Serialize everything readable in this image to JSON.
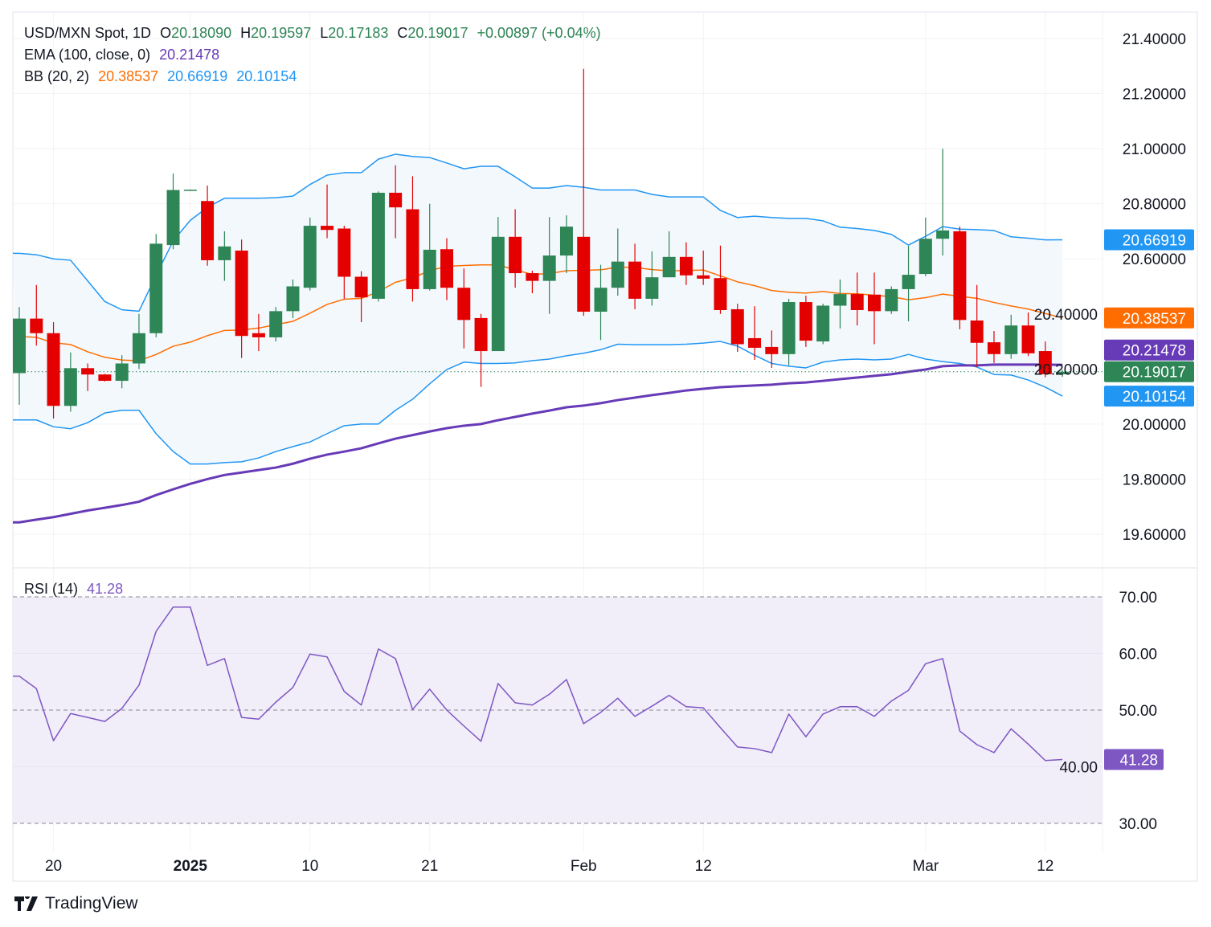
{
  "header": {
    "symbol": "USD/MXN Spot, 1D",
    "open_label": "O",
    "open": "20.18090",
    "high_label": "H",
    "high": "20.19597",
    "low_label": "L",
    "low": "20.17183",
    "close_label": "C",
    "close": "20.19017",
    "change": "+0.00897 (+0.04%)"
  },
  "ema": {
    "label": "EMA (100, close, 0)",
    "value": "20.21478"
  },
  "bb": {
    "label": "BB (20, 2)",
    "basis": "20.38537",
    "upper": "20.66919",
    "lower": "20.10154"
  },
  "rsi": {
    "label": "RSI (14)",
    "value": "41.28"
  },
  "colors": {
    "up": "#2e8555",
    "down": "#e50000",
    "ema": "#673ab7",
    "bb_basis": "#ff6d00",
    "bb_band": "#2196f3",
    "rsi": "#7e57c2",
    "rsi_fill": "#f1edf9",
    "bb_fill": "#f3f8fd"
  },
  "brand": "TradingView",
  "chart_data": [
    {
      "type": "candlestick",
      "title": "USD/MXN Spot, 1D",
      "ylim": [
        19.5,
        21.45
      ],
      "y_ticks": [
        "21.40000",
        "21.20000",
        "21.00000",
        "20.80000",
        "20.60000",
        "20.40000",
        "20.20000",
        "20.00000",
        "19.80000",
        "19.60000"
      ],
      "x_ticks": [
        {
          "label": "20",
          "index": 2,
          "bold": false
        },
        {
          "label": "2025",
          "index": 10,
          "bold": true
        },
        {
          "label": "10",
          "index": 17,
          "bold": false
        },
        {
          "label": "21",
          "index": 24,
          "bold": false
        },
        {
          "label": "Feb",
          "index": 33,
          "bold": false
        },
        {
          "label": "12",
          "index": 40,
          "bold": false
        },
        {
          "label": "Mar",
          "index": 53,
          "bold": false
        },
        {
          "label": "12",
          "index": 60,
          "bold": false
        }
      ],
      "ohlc": [
        [
          20.185,
          20.425,
          20.07,
          20.383
        ],
        [
          20.383,
          20.505,
          20.285,
          20.33
        ],
        [
          20.33,
          20.37,
          20.02,
          20.066
        ],
        [
          20.066,
          20.26,
          20.045,
          20.203
        ],
        [
          20.203,
          20.22,
          20.12,
          20.18
        ],
        [
          20.18,
          20.182,
          20.155,
          20.157
        ],
        [
          20.157,
          20.25,
          20.13,
          20.22
        ],
        [
          20.22,
          20.4,
          20.2,
          20.33
        ],
        [
          20.33,
          20.69,
          20.315,
          20.655
        ],
        [
          20.65,
          20.91,
          20.635,
          20.85
        ],
        [
          20.85,
          20.852,
          20.848,
          20.851
        ],
        [
          20.81,
          20.866,
          20.575,
          20.595
        ],
        [
          20.595,
          20.7,
          20.52,
          20.645
        ],
        [
          20.63,
          20.67,
          20.24,
          20.32
        ],
        [
          20.33,
          20.4,
          20.265,
          20.315
        ],
        [
          20.315,
          20.425,
          20.3,
          20.41
        ],
        [
          20.41,
          20.525,
          20.385,
          20.5
        ],
        [
          20.495,
          20.75,
          20.485,
          20.72
        ],
        [
          20.72,
          20.87,
          20.675,
          20.705
        ],
        [
          20.71,
          20.72,
          20.455,
          20.535
        ],
        [
          20.535,
          20.555,
          20.37,
          20.46
        ],
        [
          20.455,
          20.845,
          20.445,
          20.84
        ],
        [
          20.84,
          20.94,
          20.675,
          20.787
        ],
        [
          20.78,
          20.9,
          20.445,
          20.49
        ],
        [
          20.49,
          20.8,
          20.485,
          20.633
        ],
        [
          20.635,
          20.675,
          20.45,
          20.495
        ],
        [
          20.495,
          20.565,
          20.275,
          20.378
        ],
        [
          20.385,
          20.4,
          20.135,
          20.265
        ],
        [
          20.265,
          20.752,
          20.265,
          20.68
        ],
        [
          20.68,
          20.78,
          20.495,
          20.548
        ],
        [
          20.548,
          20.557,
          20.475,
          20.52
        ],
        [
          20.52,
          20.752,
          20.4,
          20.612
        ],
        [
          20.612,
          20.758,
          20.548,
          20.717
        ],
        [
          20.68,
          21.29,
          20.393,
          20.408
        ],
        [
          20.408,
          20.578,
          20.305,
          20.495
        ],
        [
          20.495,
          20.71,
          20.466,
          20.59
        ],
        [
          20.59,
          20.655,
          20.417,
          20.455
        ],
        [
          20.455,
          20.627,
          20.43,
          20.533
        ],
        [
          20.533,
          20.7,
          20.54,
          20.607
        ],
        [
          20.607,
          20.66,
          20.505,
          20.54
        ],
        [
          20.54,
          20.63,
          20.505,
          20.528
        ],
        [
          20.53,
          20.648,
          20.4,
          20.414
        ],
        [
          20.417,
          20.437,
          20.262,
          20.29
        ],
        [
          20.312,
          20.428,
          20.233,
          20.277
        ],
        [
          20.28,
          20.34,
          20.204,
          20.254
        ],
        [
          20.254,
          20.455,
          20.213,
          20.443
        ],
        [
          20.443,
          20.466,
          20.28,
          20.303
        ],
        [
          20.3,
          20.437,
          20.29,
          20.43
        ],
        [
          20.43,
          20.525,
          20.347,
          20.472
        ],
        [
          20.472,
          20.55,
          20.358,
          20.414
        ],
        [
          20.47,
          20.55,
          20.29,
          20.41
        ],
        [
          20.41,
          20.5,
          20.4,
          20.49
        ],
        [
          20.49,
          20.647,
          20.373,
          20.542
        ],
        [
          20.545,
          20.75,
          20.537,
          20.673
        ],
        [
          20.673,
          21.0,
          20.612,
          20.703
        ],
        [
          20.7,
          20.717,
          20.344,
          20.378
        ],
        [
          20.376,
          20.505,
          20.207,
          20.295
        ],
        [
          20.297,
          20.338,
          20.222,
          20.254
        ],
        [
          20.254,
          20.397,
          20.237,
          20.358
        ],
        [
          20.358,
          20.405,
          20.247,
          20.257
        ],
        [
          20.265,
          20.3,
          20.17,
          20.181
        ],
        [
          20.1809,
          20.19597,
          20.17183,
          20.19017
        ]
      ],
      "bb_upper": [
        20.62,
        20.615,
        20.6,
        20.595,
        20.52,
        20.445,
        20.415,
        20.41,
        20.54,
        20.665,
        20.74,
        20.787,
        20.82,
        20.82,
        20.82,
        20.822,
        20.828,
        20.87,
        20.904,
        20.913,
        20.913,
        20.962,
        20.98,
        20.972,
        20.968,
        20.948,
        20.927,
        20.936,
        20.936,
        20.898,
        20.857,
        20.857,
        20.866,
        20.86,
        20.85,
        20.85,
        20.85,
        20.834,
        20.825,
        20.825,
        20.825,
        20.776,
        20.75,
        20.755,
        20.75,
        20.747,
        20.747,
        20.738,
        20.715,
        20.71,
        20.703,
        20.689,
        20.65,
        20.682,
        20.717,
        20.708,
        20.706,
        20.703,
        20.68,
        20.675,
        20.669,
        20.66919
      ],
      "bb_lower": [
        20.015,
        20.015,
        19.99,
        19.983,
        20.005,
        20.04,
        20.05,
        20.05,
        19.965,
        19.9,
        19.855,
        19.855,
        19.86,
        19.863,
        19.877,
        19.9,
        19.918,
        19.935,
        19.965,
        19.994,
        20.0,
        20.0,
        20.05,
        20.09,
        20.146,
        20.198,
        20.225,
        20.22,
        20.22,
        20.222,
        20.23,
        20.236,
        20.248,
        20.257,
        20.27,
        20.29,
        20.288,
        20.288,
        20.288,
        20.29,
        20.294,
        20.3,
        20.283,
        20.25,
        20.22,
        20.21,
        20.204,
        20.225,
        20.233,
        20.236,
        20.233,
        20.236,
        20.253,
        20.236,
        20.227,
        20.22,
        20.207,
        20.18,
        20.178,
        20.16,
        20.134,
        20.10154
      ],
      "bb_basis_last": 20.38537,
      "ema100": [
        19.643,
        19.653,
        19.662,
        19.674,
        19.686,
        19.696,
        19.706,
        19.718,
        19.742,
        19.763,
        19.783,
        19.8,
        19.815,
        19.824,
        19.833,
        19.842,
        19.856,
        19.874,
        19.889,
        19.9,
        19.912,
        19.93,
        19.947,
        19.96,
        19.973,
        19.985,
        19.994,
        20.0,
        20.014,
        20.026,
        20.038,
        20.049,
        20.061,
        20.067,
        20.076,
        20.087,
        20.096,
        20.105,
        20.113,
        20.122,
        20.128,
        20.134,
        20.137,
        20.14,
        20.143,
        20.148,
        20.151,
        20.157,
        20.163,
        20.169,
        20.175,
        20.181,
        20.19,
        20.198,
        20.21,
        20.213,
        20.213,
        20.216,
        20.216,
        20.216,
        20.216,
        20.21478
      ],
      "last_price_line": 20.19017
    },
    {
      "type": "line",
      "title": "RSI (14)",
      "ylim": [
        30,
        70
      ],
      "y_ticks": [
        "70.00",
        "60.00",
        "50.00",
        "40.00",
        "30.00"
      ],
      "dashed_levels": [
        70,
        50,
        30
      ],
      "values": [
        56,
        53.8,
        44.6,
        49.4,
        48.7,
        48,
        50.3,
        54.4,
        63.9,
        68.2,
        68.2,
        57.9,
        59.1,
        48.7,
        48.4,
        51.4,
        54,
        59.9,
        59.4,
        53.3,
        50.9,
        60.8,
        59.1,
        50.1,
        53.7,
        50,
        47.2,
        44.5,
        54.7,
        51.3,
        50.9,
        52.8,
        55.4,
        47.6,
        49.6,
        52.1,
        48.9,
        50.7,
        52.6,
        50.6,
        50.4,
        46.9,
        43.5,
        43.2,
        42.5,
        49.3,
        45.3,
        49.3,
        50.6,
        50.6,
        48.9,
        51.6,
        53.5,
        58.2,
        59.1,
        46.3,
        43.9,
        42.5,
        46.7,
        44,
        41.1,
        41.28
      ]
    }
  ]
}
